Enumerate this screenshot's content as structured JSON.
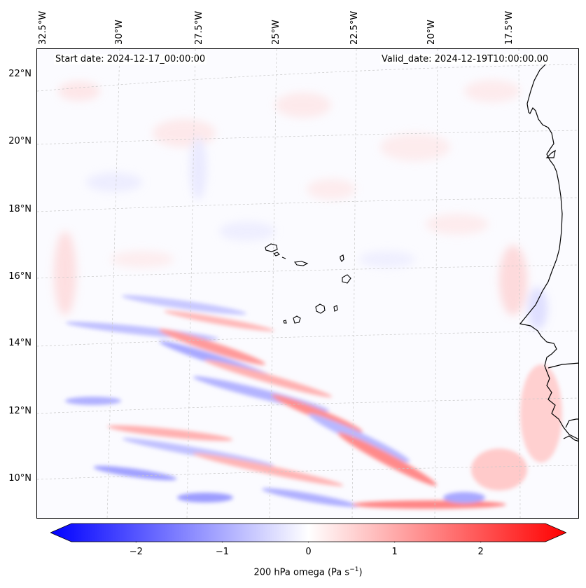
{
  "map": {
    "start_date": "Start date: 2024-12-17_00:00:00",
    "valid_date": "Valid_date: 2024-12-19T10:00:00.00",
    "lon_ticks": [
      "32.5°W",
      "30°W",
      "27.5°W",
      "25°W",
      "22.5°W",
      "20°W",
      "17.5°W"
    ],
    "lat_ticks": [
      "22°N",
      "20°N",
      "18°N",
      "16°N",
      "14°N",
      "12°N",
      "10°N"
    ],
    "variable": "200 hPa omega",
    "units_base": "Pa s",
    "units_exp": "−1"
  },
  "colorbar": {
    "ticks": [
      "−2",
      "−1",
      "0",
      "1",
      "2"
    ],
    "tick_values": [
      -2,
      -1,
      0,
      1,
      2
    ],
    "range": [
      -2.75,
      2.75
    ],
    "colormap": "bwr",
    "color_low": "#0000ff",
    "color_mid": "#ffffff",
    "color_high": "#ff0000"
  }
}
